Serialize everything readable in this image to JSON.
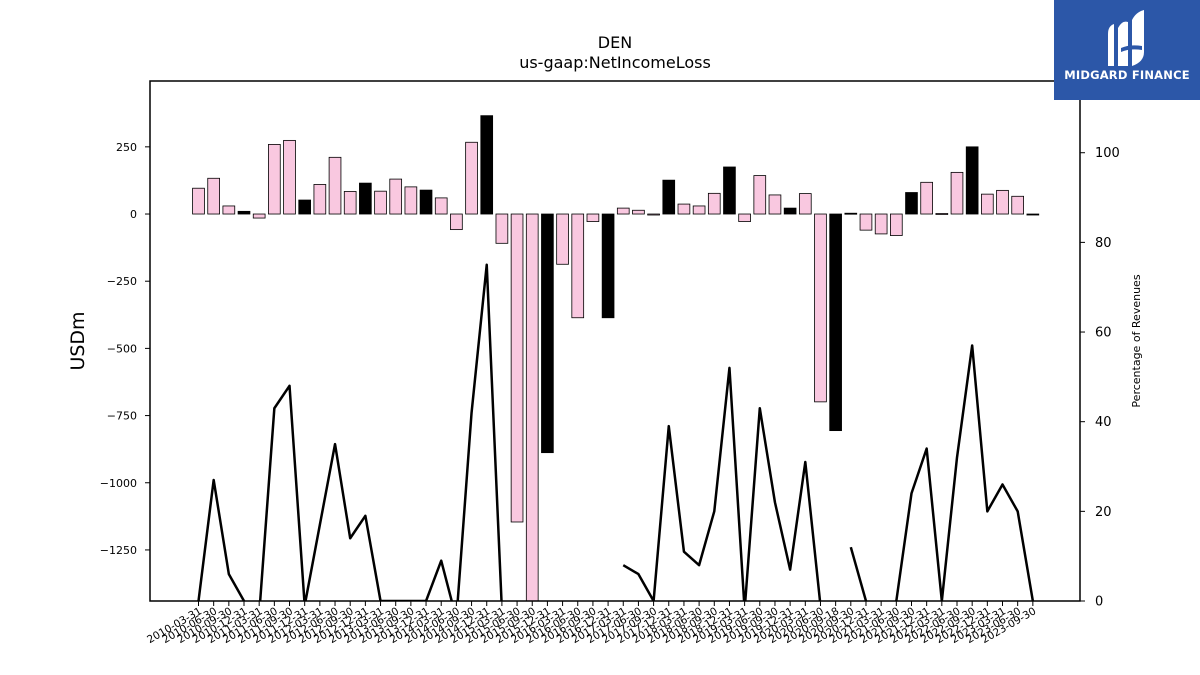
{
  "logo": {
    "text": "MIDGARD FINANCE",
    "background": "#2c57a8"
  },
  "chart_data": {
    "type": "bar",
    "title": "DEN",
    "subtitle": "us-gaap:NetIncomeLoss",
    "ylabel": "USDm",
    "ylabel_right": "Percentage of Revenues",
    "ylim": [
      -1440,
      495
    ],
    "ylim_right": [
      0,
      116
    ],
    "yticks": [
      250,
      0,
      -250,
      -500,
      -750,
      -1000,
      -1250
    ],
    "yticks_right": [
      0,
      20,
      40,
      60,
      80,
      100
    ],
    "colors": {
      "positive": "#000000",
      "negative": "#f9c8e0",
      "line": "#000000"
    },
    "categories": [
      "2010-03-31",
      "2010-06-30",
      "2010-09-30",
      "2010-12-31",
      "2011-03-31",
      "2011-06-30",
      "2011-09-30",
      "2011-12-31",
      "2012-03-31",
      "2012-06-30",
      "2012-09-30",
      "2012-12-31",
      "2013-03-31",
      "2013-06-30",
      "2013-09-30",
      "2013-12-31",
      "2014-03-31",
      "2014-06-30",
      "2014-09-30",
      "2014-12-31",
      "2015-03-31",
      "2015-06-30",
      "2015-09-30",
      "2015-12-31",
      "2016-03-31",
      "2016-06-30",
      "2016-09-30",
      "2016-12-31",
      "2017-03-31",
      "2017-06-30",
      "2017-09-30",
      "2017-12-31",
      "2018-03-31",
      "2018-06-30",
      "2018-09-30",
      "2018-12-31",
      "2019-03-31",
      "2019-06-30",
      "2019-09-30",
      "2019-12-31",
      "2020-03-31",
      "2020-06-30",
      "2020-09-18",
      "2020-09-30",
      "2020-12-31",
      "2021-03-31",
      "2021-06-30",
      "2021-09-30",
      "2021-12-31",
      "2022-03-31",
      "2022-06-30",
      "2022-09-30",
      "2022-12-31",
      "2023-03-31",
      "2023-06-30",
      "2023-09-30"
    ],
    "series": [
      {
        "kind": "bar",
        "axis": "left",
        "values": [
          96,
          133,
          30,
          10,
          -15,
          259,
          274,
          52,
          110,
          211,
          84,
          115,
          85,
          130,
          101,
          89,
          60,
          -58,
          267,
          366,
          -109,
          -1146,
          -1440,
          -888,
          -187,
          -386,
          -28,
          -386,
          22,
          14,
          0,
          126,
          37,
          30,
          77,
          175,
          -28,
          143,
          71,
          22,
          76,
          -699,
          -806,
          3,
          -60,
          -74,
          -80,
          80,
          118,
          2,
          155,
          250,
          74,
          88,
          66,
          -2
        ],
        "highlight": [
          false,
          false,
          false,
          true,
          false,
          false,
          false,
          true,
          false,
          false,
          false,
          true,
          false,
          false,
          false,
          true,
          false,
          false,
          false,
          true,
          false,
          false,
          false,
          true,
          false,
          false,
          false,
          true,
          false,
          false,
          false,
          true,
          false,
          false,
          false,
          true,
          false,
          false,
          false,
          true,
          false,
          false,
          true,
          true,
          false,
          false,
          false,
          true,
          false,
          false,
          false,
          true,
          false,
          false,
          false,
          true
        ]
      },
      {
        "kind": "line",
        "axis": "right",
        "values": [
          0,
          27,
          6,
          0,
          -3,
          43,
          48,
          -1,
          17,
          35,
          14,
          19,
          0,
          0,
          0,
          0,
          9,
          -4,
          42,
          75,
          -2,
          null,
          null,
          null,
          null,
          null,
          null,
          null,
          8,
          6,
          0,
          39,
          11,
          8,
          20,
          52,
          -2,
          43,
          22,
          7,
          31,
          -1,
          null,
          12,
          0,
          null,
          0,
          24,
          34,
          0,
          32,
          57,
          20,
          26,
          20,
          0
        ]
      }
    ]
  }
}
